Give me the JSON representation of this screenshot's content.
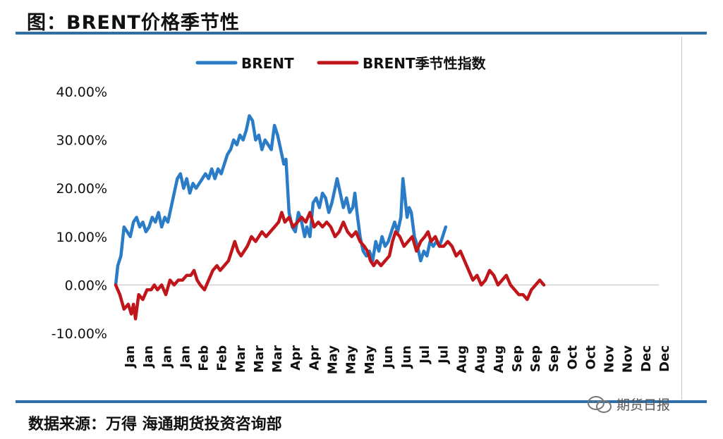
{
  "header": {
    "title": "图：BRENT价格季节性"
  },
  "footer": {
    "source": "数据来源：万得   海通期货投资咨询部",
    "watermark": "期货日报"
  },
  "colors": {
    "brent": "#2a7cc7",
    "seasonal": "#c0161b",
    "rule": "#2f6ea8"
  },
  "chart_data": {
    "type": "line",
    "title": "",
    "xlabel": "",
    "ylabel": "",
    "ylim": [
      -0.1,
      0.4
    ],
    "yticks": [
      -0.1,
      0.0,
      0.1,
      0.2,
      0.3,
      0.4
    ],
    "ytick_labels": [
      "-10.00%",
      "0.00%",
      "10.00%",
      "20.00%",
      "30.00%",
      "40.00%"
    ],
    "xlim": [
      0,
      26
    ],
    "x_tick_labels": [
      "Jan",
      "Jan",
      "Jan",
      "Jan",
      "Feb",
      "Feb",
      "Mar",
      "Mar",
      "Mar",
      "Apr",
      "Apr",
      "May",
      "May",
      "May",
      "Jun",
      "Jun",
      "Jul",
      "Jul",
      "Aug",
      "Aug",
      "Aug",
      "Sep",
      "Sep",
      "Sep",
      "Oct",
      "Oct",
      "Nov",
      "Nov",
      "Dec",
      "Dec"
    ],
    "legend": [
      "BRENT",
      "BRENT季节性指数"
    ],
    "series": [
      {
        "name": "BRENT",
        "color": "#2a7cc7",
        "points": [
          [
            0.0,
            0.0
          ],
          [
            0.1,
            0.04
          ],
          [
            0.25,
            0.06
          ],
          [
            0.4,
            0.12
          ],
          [
            0.55,
            0.11
          ],
          [
            0.7,
            0.1
          ],
          [
            0.85,
            0.13
          ],
          [
            1.0,
            0.14
          ],
          [
            1.15,
            0.12
          ],
          [
            1.3,
            0.13
          ],
          [
            1.45,
            0.11
          ],
          [
            1.6,
            0.12
          ],
          [
            1.75,
            0.14
          ],
          [
            1.9,
            0.13
          ],
          [
            2.05,
            0.15
          ],
          [
            2.2,
            0.12
          ],
          [
            2.35,
            0.14
          ],
          [
            2.5,
            0.13
          ],
          [
            2.65,
            0.16
          ],
          [
            2.8,
            0.19
          ],
          [
            2.95,
            0.22
          ],
          [
            3.1,
            0.23
          ],
          [
            3.25,
            0.2
          ],
          [
            3.4,
            0.22
          ],
          [
            3.55,
            0.19
          ],
          [
            3.7,
            0.21
          ],
          [
            3.85,
            0.2
          ],
          [
            4.0,
            0.21
          ],
          [
            4.15,
            0.22
          ],
          [
            4.3,
            0.23
          ],
          [
            4.45,
            0.22
          ],
          [
            4.6,
            0.24
          ],
          [
            4.75,
            0.22
          ],
          [
            4.9,
            0.24
          ],
          [
            5.05,
            0.23
          ],
          [
            5.2,
            0.25
          ],
          [
            5.35,
            0.27
          ],
          [
            5.5,
            0.28
          ],
          [
            5.65,
            0.3
          ],
          [
            5.8,
            0.29
          ],
          [
            5.95,
            0.31
          ],
          [
            6.1,
            0.3
          ],
          [
            6.25,
            0.32
          ],
          [
            6.4,
            0.35
          ],
          [
            6.55,
            0.34
          ],
          [
            6.7,
            0.3
          ],
          [
            6.85,
            0.31
          ],
          [
            7.0,
            0.28
          ],
          [
            7.15,
            0.3
          ],
          [
            7.3,
            0.29
          ],
          [
            7.45,
            0.28
          ],
          [
            7.6,
            0.33
          ],
          [
            7.75,
            0.31
          ],
          [
            7.9,
            0.28
          ],
          [
            8.05,
            0.25
          ],
          [
            8.15,
            0.26
          ],
          [
            8.3,
            0.15
          ],
          [
            8.45,
            0.12
          ],
          [
            8.6,
            0.11
          ],
          [
            8.75,
            0.15
          ],
          [
            8.9,
            0.13
          ],
          [
            9.05,
            0.1
          ],
          [
            9.15,
            0.12
          ],
          [
            9.3,
            0.1
          ],
          [
            9.45,
            0.17
          ],
          [
            9.6,
            0.18
          ],
          [
            9.75,
            0.16
          ],
          [
            9.9,
            0.19
          ],
          [
            10.05,
            0.18
          ],
          [
            10.2,
            0.15
          ],
          [
            10.35,
            0.17
          ],
          [
            10.5,
            0.2
          ],
          [
            10.6,
            0.22
          ],
          [
            10.75,
            0.19
          ],
          [
            10.9,
            0.16
          ],
          [
            11.05,
            0.18
          ],
          [
            11.2,
            0.15
          ],
          [
            11.35,
            0.16
          ],
          [
            11.45,
            0.19
          ],
          [
            11.55,
            0.15
          ],
          [
            11.7,
            0.1
          ],
          [
            11.85,
            0.07
          ],
          [
            12.0,
            0.06
          ],
          [
            12.15,
            0.07
          ],
          [
            12.3,
            0.05
          ],
          [
            12.45,
            0.09
          ],
          [
            12.6,
            0.07
          ],
          [
            12.75,
            0.1
          ],
          [
            12.9,
            0.08
          ],
          [
            13.05,
            0.09
          ],
          [
            13.2,
            0.11
          ],
          [
            13.35,
            0.13
          ],
          [
            13.5,
            0.11
          ],
          [
            13.65,
            0.14
          ],
          [
            13.75,
            0.22
          ],
          [
            13.85,
            0.18
          ],
          [
            13.95,
            0.14
          ],
          [
            14.05,
            0.16
          ],
          [
            14.15,
            0.15
          ],
          [
            14.3,
            0.1
          ],
          [
            14.45,
            0.08
          ],
          [
            14.6,
            0.05
          ],
          [
            14.75,
            0.07
          ],
          [
            14.9,
            0.06
          ],
          [
            15.05,
            0.09
          ],
          [
            15.2,
            0.08
          ],
          [
            15.35,
            0.09
          ],
          [
            15.5,
            0.08
          ],
          [
            15.65,
            0.1
          ],
          [
            15.8,
            0.12
          ]
        ]
      },
      {
        "name": "BRENT季节性指数",
        "color": "#c0161b",
        "points": [
          [
            0.0,
            0.0
          ],
          [
            0.2,
            -0.02
          ],
          [
            0.4,
            -0.05
          ],
          [
            0.6,
            -0.04
          ],
          [
            0.75,
            -0.06
          ],
          [
            0.85,
            -0.04
          ],
          [
            0.95,
            -0.07
          ],
          [
            1.1,
            -0.02
          ],
          [
            1.3,
            -0.03
          ],
          [
            1.5,
            -0.01
          ],
          [
            1.7,
            -0.01
          ],
          [
            1.85,
            0.0
          ],
          [
            2.0,
            -0.01
          ],
          [
            2.2,
            0.0
          ],
          [
            2.4,
            -0.02
          ],
          [
            2.6,
            0.01
          ],
          [
            2.8,
            0.0
          ],
          [
            3.0,
            0.01
          ],
          [
            3.2,
            0.01
          ],
          [
            3.4,
            0.02
          ],
          [
            3.6,
            0.02
          ],
          [
            3.75,
            0.03
          ],
          [
            3.9,
            0.01
          ],
          [
            4.05,
            0.0
          ],
          [
            4.25,
            -0.01
          ],
          [
            4.45,
            0.01
          ],
          [
            4.65,
            0.03
          ],
          [
            4.85,
            0.04
          ],
          [
            5.0,
            0.03
          ],
          [
            5.2,
            0.04
          ],
          [
            5.4,
            0.05
          ],
          [
            5.55,
            0.07
          ],
          [
            5.7,
            0.09
          ],
          [
            5.85,
            0.07
          ],
          [
            6.0,
            0.06
          ],
          [
            6.15,
            0.07
          ],
          [
            6.3,
            0.08
          ],
          [
            6.5,
            0.1
          ],
          [
            6.7,
            0.09
          ],
          [
            6.85,
            0.1
          ],
          [
            7.0,
            0.11
          ],
          [
            7.2,
            0.1
          ],
          [
            7.4,
            0.11
          ],
          [
            7.6,
            0.12
          ],
          [
            7.8,
            0.13
          ],
          [
            7.95,
            0.15
          ],
          [
            8.1,
            0.13
          ],
          [
            8.3,
            0.14
          ],
          [
            8.5,
            0.12
          ],
          [
            8.7,
            0.13
          ],
          [
            8.9,
            0.14
          ],
          [
            9.1,
            0.13
          ],
          [
            9.3,
            0.15
          ],
          [
            9.5,
            0.12
          ],
          [
            9.7,
            0.13
          ],
          [
            9.9,
            0.12
          ],
          [
            10.1,
            0.13
          ],
          [
            10.3,
            0.12
          ],
          [
            10.5,
            0.1
          ],
          [
            10.7,
            0.11
          ],
          [
            10.9,
            0.13
          ],
          [
            11.1,
            0.11
          ],
          [
            11.3,
            0.1
          ],
          [
            11.5,
            0.11
          ],
          [
            11.7,
            0.09
          ],
          [
            11.9,
            0.08
          ],
          [
            12.05,
            0.07
          ],
          [
            12.2,
            0.05
          ],
          [
            12.35,
            0.04
          ],
          [
            12.5,
            0.05
          ],
          [
            12.7,
            0.04
          ],
          [
            12.9,
            0.05
          ],
          [
            13.1,
            0.06
          ],
          [
            13.25,
            0.09
          ],
          [
            13.4,
            0.11
          ],
          [
            13.6,
            0.1
          ],
          [
            13.8,
            0.08
          ],
          [
            14.0,
            0.09
          ],
          [
            14.2,
            0.1
          ],
          [
            14.4,
            0.07
          ],
          [
            14.6,
            0.09
          ],
          [
            14.8,
            0.1
          ],
          [
            14.95,
            0.11
          ],
          [
            15.1,
            0.09
          ],
          [
            15.3,
            0.1
          ],
          [
            15.5,
            0.08
          ],
          [
            15.7,
            0.08
          ],
          [
            15.9,
            0.09
          ],
          [
            16.1,
            0.08
          ],
          [
            16.3,
            0.06
          ],
          [
            16.5,
            0.07
          ],
          [
            16.7,
            0.05
          ],
          [
            16.9,
            0.03
          ],
          [
            17.1,
            0.01
          ],
          [
            17.3,
            0.02
          ],
          [
            17.5,
            0.0
          ],
          [
            17.7,
            0.01
          ],
          [
            17.9,
            0.03
          ],
          [
            18.1,
            0.02
          ],
          [
            18.3,
            0.0
          ],
          [
            18.5,
            0.01
          ],
          [
            18.7,
            0.02
          ],
          [
            18.9,
            0.0
          ],
          [
            19.1,
            -0.01
          ],
          [
            19.3,
            -0.02
          ],
          [
            19.5,
            -0.02
          ],
          [
            19.7,
            -0.03
          ],
          [
            19.9,
            -0.01
          ],
          [
            20.1,
            0.0
          ],
          [
            20.3,
            0.01
          ],
          [
            20.5,
            0.0
          ]
        ]
      }
    ]
  }
}
